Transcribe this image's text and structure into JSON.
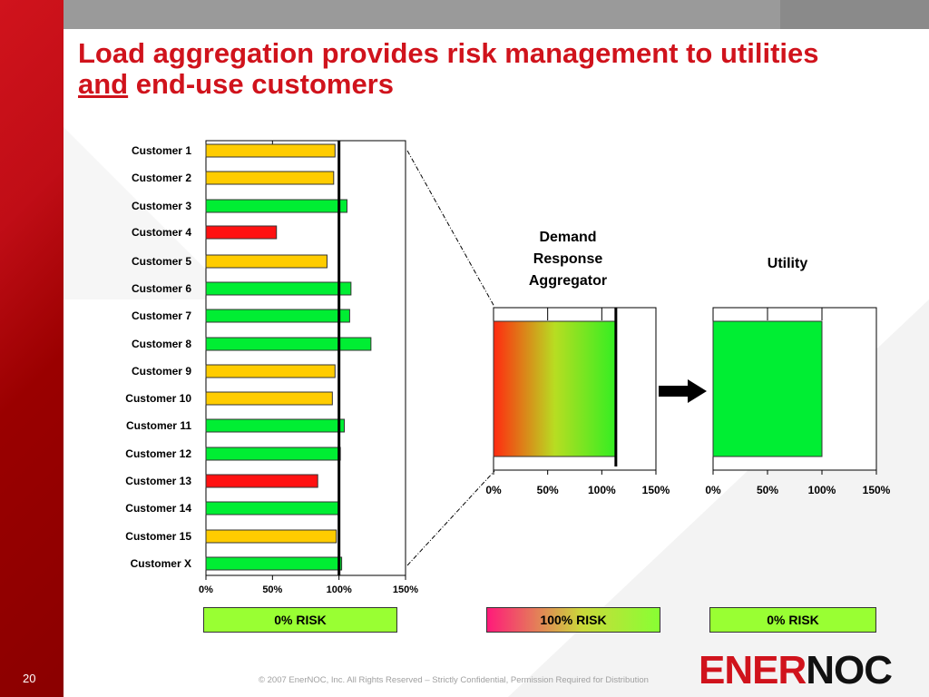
{
  "slide": {
    "title_line1": "Load aggregation provides risk management to utilities",
    "title_and": "and",
    "title_rest": " end-use customers",
    "page_number": "20",
    "copyright": "© 2007 EnerNOC, Inc. All Rights Reserved – Strictly Confidential, Permission Required for Distribution",
    "logo_part1": "ENER",
    "logo_part2": "NOC",
    "colors": {
      "brand_red": "#d0131c",
      "green": "#00ee33",
      "yellow": "#ffcc00",
      "red": "#ff1111"
    }
  },
  "aggregator_header": "Demand Response Aggregator",
  "utility_header": "Utility",
  "risk_labels": {
    "customers": "0% RISK",
    "aggregator": "100% RISK",
    "utility": "0% RISK"
  },
  "chart_data": [
    {
      "type": "bar",
      "orientation": "horizontal",
      "categories": [
        "Customer 1",
        "Customer 2",
        "Customer 3",
        "Customer 4",
        "Customer 5",
        "Customer 6",
        "Customer 7",
        "Customer 8",
        "Customer 9",
        "Customer 10",
        "Customer 11",
        "Customer 12",
        "Customer 13",
        "Customer 14",
        "Customer 15",
        "Customer X"
      ],
      "values": [
        97,
        96,
        106,
        53,
        91,
        109,
        108,
        124,
        97,
        95,
        104,
        101,
        84,
        100,
        98,
        102
      ],
      "bar_colors": [
        "yellow",
        "yellow",
        "green",
        "red",
        "yellow",
        "green",
        "green",
        "green",
        "yellow",
        "yellow",
        "green",
        "green",
        "red",
        "green",
        "yellow",
        "green"
      ],
      "xlim": [
        0,
        150
      ],
      "xticks": [
        "0%",
        "50%",
        "100%",
        "150%"
      ],
      "reference_line": 100
    },
    {
      "type": "bar",
      "orientation": "horizontal",
      "categories": [
        "Demand Response Aggregator"
      ],
      "values": [
        113
      ],
      "fill": "gradient red-to-green",
      "xlim": [
        0,
        150
      ],
      "xticks": [
        "0%",
        "50%",
        "100%",
        "150%"
      ],
      "reference_line": 113
    },
    {
      "type": "bar",
      "orientation": "horizontal",
      "categories": [
        "Utility"
      ],
      "values": [
        100
      ],
      "fill": "green",
      "xlim": [
        0,
        150
      ],
      "xticks": [
        "0%",
        "50%",
        "100%",
        "150%"
      ]
    }
  ]
}
